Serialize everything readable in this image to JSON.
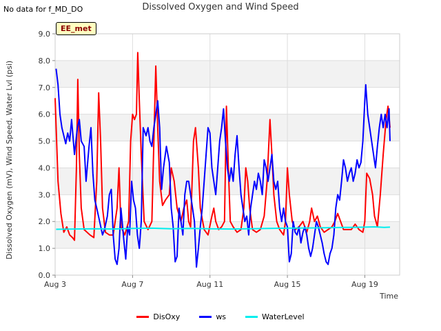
{
  "header": {
    "no_data_note": "No data for f_MD_DO",
    "site_badge": "EE_met"
  },
  "chart_data": {
    "type": "line",
    "title": "Dissolved Oxygen and Wind Speed",
    "xlabel": "Time",
    "ylabel": "Dissolved Oxygen (mV), Wind Speed, Water Lvl (psi)",
    "xlim": [
      "Aug 3",
      "Aug 20.8"
    ],
    "ylim": [
      0.0,
      9.0
    ],
    "x_ticks": [
      {
        "day": 3,
        "label": "Aug 3"
      },
      {
        "day": 7,
        "label": "Aug 7"
      },
      {
        "day": 11,
        "label": "Aug 11"
      },
      {
        "day": 15,
        "label": "Aug 15"
      },
      {
        "day": 19,
        "label": "Aug 19"
      }
    ],
    "y_ticks": [
      "0.0",
      "1.0",
      "2.0",
      "3.0",
      "4.0",
      "5.0",
      "6.0",
      "7.0",
      "8.0",
      "9.0"
    ],
    "grid": true,
    "legend_position": "bottom",
    "series": [
      {
        "name": "DisOxy",
        "color": "#ff0000",
        "points": [
          [
            3.0,
            6.6
          ],
          [
            3.15,
            3.5
          ],
          [
            3.3,
            2.3
          ],
          [
            3.45,
            1.6
          ],
          [
            3.6,
            1.8
          ],
          [
            3.75,
            1.5
          ],
          [
            3.9,
            1.4
          ],
          [
            4.0,
            1.3
          ],
          [
            4.1,
            4.0
          ],
          [
            4.17,
            7.3
          ],
          [
            4.25,
            4.5
          ],
          [
            4.35,
            2.5
          ],
          [
            4.5,
            1.7
          ],
          [
            4.65,
            1.6
          ],
          [
            4.8,
            1.5
          ],
          [
            5.0,
            1.4
          ],
          [
            5.15,
            3.5
          ],
          [
            5.25,
            6.8
          ],
          [
            5.35,
            5.0
          ],
          [
            5.45,
            2.5
          ],
          [
            5.6,
            1.6
          ],
          [
            5.8,
            1.5
          ],
          [
            6.0,
            1.5
          ],
          [
            6.2,
            2.5
          ],
          [
            6.3,
            4.0
          ],
          [
            6.4,
            1.8
          ],
          [
            6.6,
            1.5
          ],
          [
            6.8,
            2.0
          ],
          [
            6.9,
            5.0
          ],
          [
            7.0,
            6.0
          ],
          [
            7.1,
            5.8
          ],
          [
            7.2,
            6.0
          ],
          [
            7.27,
            8.3
          ],
          [
            7.35,
            6.5
          ],
          [
            7.45,
            4.5
          ],
          [
            7.6,
            2.0
          ],
          [
            7.8,
            1.7
          ],
          [
            8.0,
            2.0
          ],
          [
            8.1,
            5.0
          ],
          [
            8.2,
            7.8
          ],
          [
            8.3,
            5.5
          ],
          [
            8.4,
            3.5
          ],
          [
            8.55,
            2.6
          ],
          [
            8.7,
            2.8
          ],
          [
            8.9,
            3.0
          ],
          [
            9.0,
            4.0
          ],
          [
            9.15,
            3.5
          ],
          [
            9.3,
            2.5
          ],
          [
            9.5,
            2.0
          ],
          [
            9.65,
            2.5
          ],
          [
            9.8,
            2.8
          ],
          [
            9.9,
            2.0
          ],
          [
            10.0,
            1.8
          ],
          [
            10.15,
            5.0
          ],
          [
            10.25,
            5.5
          ],
          [
            10.4,
            4.0
          ],
          [
            10.5,
            2.5
          ],
          [
            10.7,
            1.7
          ],
          [
            10.9,
            1.5
          ],
          [
            11.1,
            2.2
          ],
          [
            11.2,
            2.5
          ],
          [
            11.3,
            2.0
          ],
          [
            11.45,
            1.7
          ],
          [
            11.6,
            1.8
          ],
          [
            11.75,
            2.0
          ],
          [
            11.85,
            6.3
          ],
          [
            11.95,
            4.0
          ],
          [
            12.05,
            2.0
          ],
          [
            12.2,
            1.8
          ],
          [
            12.4,
            1.6
          ],
          [
            12.6,
            1.7
          ],
          [
            12.75,
            2.5
          ],
          [
            12.85,
            4.0
          ],
          [
            12.95,
            3.5
          ],
          [
            13.05,
            2.5
          ],
          [
            13.2,
            1.7
          ],
          [
            13.4,
            1.6
          ],
          [
            13.6,
            1.7
          ],
          [
            13.8,
            2.2
          ],
          [
            13.95,
            3.5
          ],
          [
            14.1,
            5.8
          ],
          [
            14.2,
            4.5
          ],
          [
            14.3,
            3.0
          ],
          [
            14.45,
            2.0
          ],
          [
            14.6,
            1.7
          ],
          [
            14.8,
            1.5
          ],
          [
            14.9,
            2.0
          ],
          [
            15.0,
            4.0
          ],
          [
            15.1,
            3.0
          ],
          [
            15.25,
            2.0
          ],
          [
            15.4,
            1.7
          ],
          [
            15.6,
            1.8
          ],
          [
            15.8,
            2.0
          ],
          [
            16.0,
            1.6
          ],
          [
            16.15,
            2.0
          ],
          [
            16.25,
            2.5
          ],
          [
            16.4,
            2.0
          ],
          [
            16.55,
            2.2
          ],
          [
            16.7,
            1.8
          ],
          [
            16.9,
            1.6
          ],
          [
            17.1,
            1.7
          ],
          [
            17.3,
            1.8
          ],
          [
            17.45,
            2.0
          ],
          [
            17.6,
            2.3
          ],
          [
            17.75,
            2.0
          ],
          [
            17.9,
            1.7
          ],
          [
            18.1,
            1.7
          ],
          [
            18.3,
            1.7
          ],
          [
            18.5,
            1.9
          ],
          [
            18.7,
            1.7
          ],
          [
            18.9,
            1.6
          ],
          [
            19.0,
            2.0
          ],
          [
            19.1,
            3.8
          ],
          [
            19.25,
            3.6
          ],
          [
            19.4,
            3.0
          ],
          [
            19.5,
            2.2
          ],
          [
            19.65,
            1.8
          ],
          [
            19.8,
            3.0
          ],
          [
            19.95,
            4.5
          ],
          [
            20.1,
            5.8
          ],
          [
            20.2,
            6.3
          ],
          [
            20.3,
            5.5
          ]
        ]
      },
      {
        "name": "ws",
        "color": "#0000ff",
        "points": [
          [
            3.05,
            7.7
          ],
          [
            3.15,
            7.1
          ],
          [
            3.25,
            6.0
          ],
          [
            3.35,
            5.5
          ],
          [
            3.45,
            5.2
          ],
          [
            3.55,
            4.9
          ],
          [
            3.65,
            5.3
          ],
          [
            3.75,
            5.0
          ],
          [
            3.85,
            5.8
          ],
          [
            4.0,
            4.5
          ],
          [
            4.15,
            5.5
          ],
          [
            4.25,
            5.8
          ],
          [
            4.35,
            5.0
          ],
          [
            4.5,
            4.8
          ],
          [
            4.6,
            3.5
          ],
          [
            4.75,
            4.8
          ],
          [
            4.85,
            5.5
          ],
          [
            4.95,
            3.8
          ],
          [
            5.05,
            2.8
          ],
          [
            5.15,
            2.5
          ],
          [
            5.3,
            2.0
          ],
          [
            5.45,
            1.5
          ],
          [
            5.55,
            1.7
          ],
          [
            5.7,
            2.2
          ],
          [
            5.8,
            3.0
          ],
          [
            5.9,
            3.2
          ],
          [
            6.0,
            1.5
          ],
          [
            6.1,
            0.6
          ],
          [
            6.2,
            0.4
          ],
          [
            6.3,
            1.0
          ],
          [
            6.4,
            2.5
          ],
          [
            6.55,
            1.3
          ],
          [
            6.65,
            0.6
          ],
          [
            6.75,
            1.8
          ],
          [
            6.85,
            1.5
          ],
          [
            6.95,
            3.5
          ],
          [
            7.05,
            2.8
          ],
          [
            7.15,
            2.5
          ],
          [
            7.25,
            1.5
          ],
          [
            7.35,
            1.0
          ],
          [
            7.45,
            2.0
          ],
          [
            7.55,
            5.5
          ],
          [
            7.7,
            5.2
          ],
          [
            7.8,
            5.5
          ],
          [
            7.9,
            5.0
          ],
          [
            8.0,
            4.8
          ],
          [
            8.1,
            5.5
          ],
          [
            8.2,
            6.0
          ],
          [
            8.3,
            6.5
          ],
          [
            8.4,
            5.5
          ],
          [
            8.5,
            3.2
          ],
          [
            8.6,
            4.0
          ],
          [
            8.75,
            4.8
          ],
          [
            8.9,
            4.2
          ],
          [
            9.0,
            2.5
          ],
          [
            9.1,
            1.8
          ],
          [
            9.2,
            0.5
          ],
          [
            9.3,
            0.7
          ],
          [
            9.4,
            2.5
          ],
          [
            9.5,
            2.0
          ],
          [
            9.6,
            1.5
          ],
          [
            9.7,
            3.0
          ],
          [
            9.8,
            3.5
          ],
          [
            9.9,
            3.5
          ],
          [
            10.0,
            3.0
          ],
          [
            10.1,
            2.5
          ],
          [
            10.2,
            2.0
          ],
          [
            10.3,
            0.3
          ],
          [
            10.4,
            1.0
          ],
          [
            10.5,
            1.8
          ],
          [
            10.6,
            2.5
          ],
          [
            10.7,
            3.5
          ],
          [
            10.8,
            4.5
          ],
          [
            10.9,
            5.5
          ],
          [
            11.0,
            5.3
          ],
          [
            11.1,
            4.0
          ],
          [
            11.2,
            3.5
          ],
          [
            11.3,
            3.0
          ],
          [
            11.4,
            4.0
          ],
          [
            11.5,
            5.0
          ],
          [
            11.6,
            5.5
          ],
          [
            11.7,
            6.2
          ],
          [
            11.8,
            5.0
          ],
          [
            11.9,
            4.0
          ],
          [
            12.0,
            3.5
          ],
          [
            12.1,
            4.0
          ],
          [
            12.2,
            3.5
          ],
          [
            12.3,
            4.5
          ],
          [
            12.4,
            5.2
          ],
          [
            12.5,
            4.0
          ],
          [
            12.6,
            3.0
          ],
          [
            12.7,
            2.5
          ],
          [
            12.8,
            2.0
          ],
          [
            12.9,
            2.2
          ],
          [
            13.0,
            1.5
          ],
          [
            13.1,
            2.5
          ],
          [
            13.2,
            3.0
          ],
          [
            13.3,
            3.5
          ],
          [
            13.4,
            3.2
          ],
          [
            13.5,
            3.8
          ],
          [
            13.6,
            3.5
          ],
          [
            13.7,
            3.0
          ],
          [
            13.8,
            4.3
          ],
          [
            13.9,
            4.0
          ],
          [
            14.0,
            3.5
          ],
          [
            14.1,
            4.0
          ],
          [
            14.2,
            4.5
          ],
          [
            14.3,
            3.5
          ],
          [
            14.4,
            3.2
          ],
          [
            14.5,
            3.5
          ],
          [
            14.6,
            2.5
          ],
          [
            14.7,
            2.0
          ],
          [
            14.8,
            2.5
          ],
          [
            14.9,
            2.0
          ],
          [
            15.0,
            1.8
          ],
          [
            15.1,
            0.5
          ],
          [
            15.2,
            0.8
          ],
          [
            15.3,
            2.0
          ],
          [
            15.4,
            1.6
          ],
          [
            15.5,
            1.5
          ],
          [
            15.6,
            1.8
          ],
          [
            15.7,
            1.2
          ],
          [
            15.8,
            1.6
          ],
          [
            15.9,
            1.8
          ],
          [
            16.0,
            1.5
          ],
          [
            16.1,
            1.0
          ],
          [
            16.2,
            0.7
          ],
          [
            16.3,
            1.0
          ],
          [
            16.4,
            1.5
          ],
          [
            16.5,
            2.0
          ],
          [
            16.6,
            1.8
          ],
          [
            16.7,
            1.5
          ],
          [
            16.8,
            1.2
          ],
          [
            16.9,
            0.8
          ],
          [
            17.0,
            0.5
          ],
          [
            17.1,
            0.4
          ],
          [
            17.2,
            0.8
          ],
          [
            17.3,
            1.0
          ],
          [
            17.4,
            1.5
          ],
          [
            17.5,
            2.5
          ],
          [
            17.6,
            3.0
          ],
          [
            17.7,
            2.8
          ],
          [
            17.8,
            3.5
          ],
          [
            17.9,
            4.3
          ],
          [
            18.0,
            4.0
          ],
          [
            18.1,
            3.5
          ],
          [
            18.2,
            3.8
          ],
          [
            18.3,
            4.0
          ],
          [
            18.4,
            3.5
          ],
          [
            18.5,
            3.8
          ],
          [
            18.6,
            4.3
          ],
          [
            18.7,
            4.0
          ],
          [
            18.8,
            4.2
          ],
          [
            18.9,
            5.0
          ],
          [
            19.0,
            6.5
          ],
          [
            19.05,
            7.1
          ],
          [
            19.15,
            6.0
          ],
          [
            19.25,
            5.5
          ],
          [
            19.35,
            5.0
          ],
          [
            19.45,
            4.5
          ],
          [
            19.55,
            4.0
          ],
          [
            19.65,
            4.8
          ],
          [
            19.75,
            5.5
          ],
          [
            19.85,
            6.0
          ],
          [
            19.95,
            5.5
          ],
          [
            20.05,
            6.0
          ],
          [
            20.15,
            5.5
          ],
          [
            20.25,
            6.2
          ],
          [
            20.3,
            5.0
          ]
        ]
      },
      {
        "name": "WaterLevel",
        "color": "#00eeee",
        "points": [
          [
            3.05,
            1.71
          ],
          [
            4.0,
            1.72
          ],
          [
            5.0,
            1.73
          ],
          [
            6.0,
            1.72
          ],
          [
            7.0,
            1.74
          ],
          [
            8.0,
            1.75
          ],
          [
            9.0,
            1.73
          ],
          [
            10.0,
            1.74
          ],
          [
            11.0,
            1.73
          ],
          [
            12.0,
            1.72
          ],
          [
            13.0,
            1.73
          ],
          [
            14.0,
            1.74
          ],
          [
            15.0,
            1.75
          ],
          [
            16.0,
            1.76
          ],
          [
            17.0,
            1.77
          ],
          [
            18.0,
            1.78
          ],
          [
            19.0,
            1.79
          ],
          [
            19.5,
            1.8
          ],
          [
            20.0,
            1.78
          ],
          [
            20.3,
            1.79
          ]
        ]
      }
    ]
  }
}
